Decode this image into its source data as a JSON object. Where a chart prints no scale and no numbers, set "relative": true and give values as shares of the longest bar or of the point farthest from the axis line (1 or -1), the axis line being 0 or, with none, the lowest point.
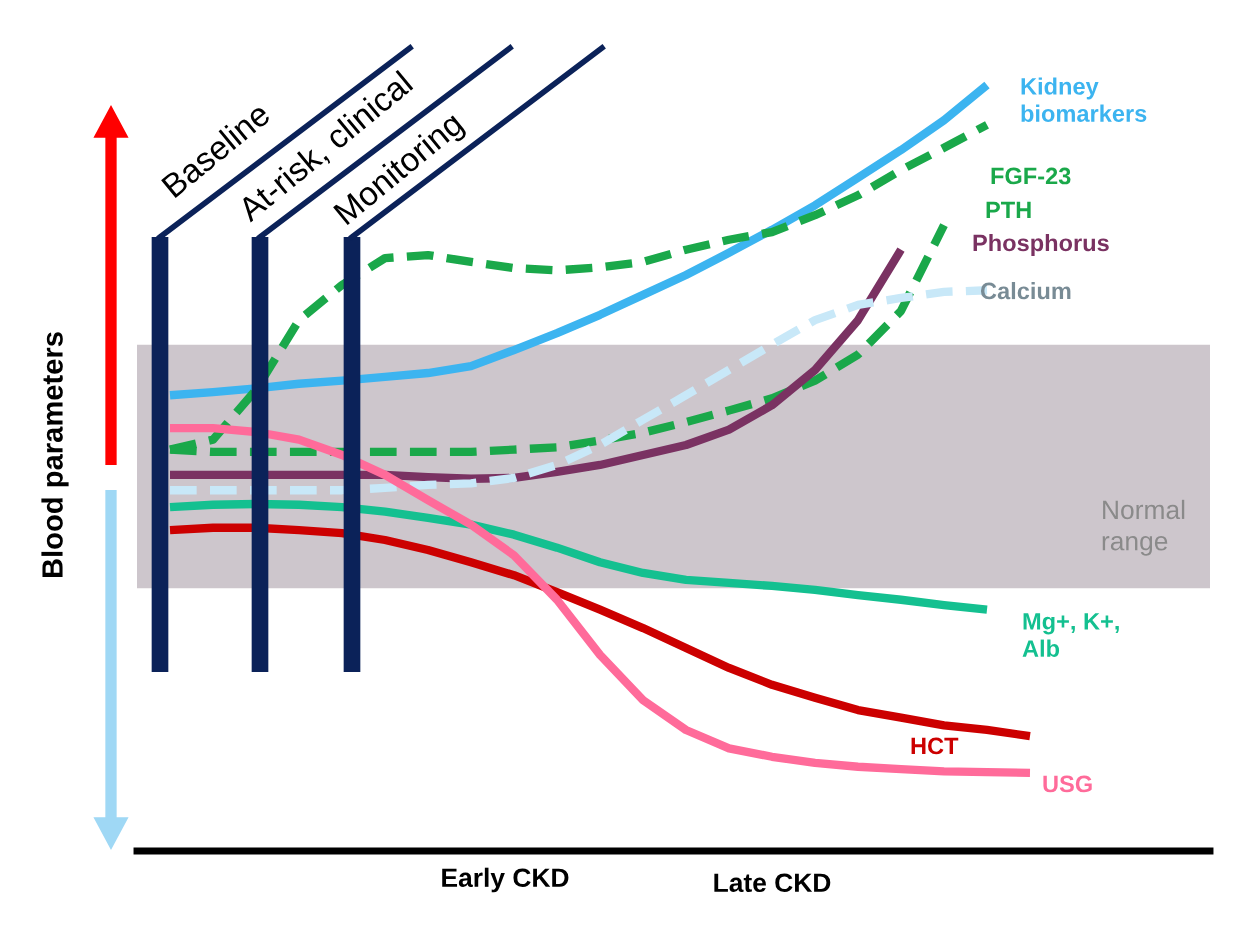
{
  "chart_data": {
    "type": "line",
    "relative": true,
    "ylabel": "Blood parameters",
    "categories": [
      null,
      null,
      null,
      null,
      null,
      null,
      null,
      null,
      null,
      null,
      null,
      null,
      null,
      null,
      null,
      null,
      null,
      null,
      null,
      null,
      null
    ],
    "series": [
      {
        "name": "Kidney biomarkers",
        "color": "#3cb4f0",
        "line_style": "solid",
        "values": [
          0.595,
          0.599,
          0.604,
          0.61,
          0.614,
          0.619,
          0.624,
          0.633,
          0.654,
          0.676,
          0.7,
          0.726,
          0.752,
          0.781,
          0.811,
          0.843,
          0.879,
          0.915,
          0.954,
          1.0,
          null
        ]
      },
      {
        "name": "FGF-23",
        "color": "#1aa84a",
        "line_style": "dashed",
        "values": [
          0.524,
          0.537,
          0.602,
          0.693,
          0.739,
          0.774,
          0.778,
          0.769,
          0.761,
          0.758,
          0.762,
          0.769,
          0.785,
          0.798,
          0.808,
          0.83,
          0.856,
          0.889,
          0.918,
          0.948,
          null
        ]
      },
      {
        "name": "PTH",
        "color": "#1aa84a",
        "line_style": "dashed",
        "values": [
          0.524,
          0.521,
          0.521,
          0.521,
          0.521,
          0.521,
          0.521,
          0.521,
          0.524,
          0.527,
          0.536,
          0.546,
          0.56,
          0.575,
          0.591,
          0.614,
          0.648,
          0.705,
          0.817,
          null,
          null
        ]
      },
      {
        "name": "Phosphorus",
        "color": "#7a3262",
        "line_style": "solid",
        "values": [
          0.491,
          0.491,
          0.491,
          0.491,
          0.491,
          0.491,
          0.488,
          0.486,
          0.487,
          0.495,
          0.504,
          0.517,
          0.53,
          0.55,
          0.582,
          0.628,
          0.693,
          0.785,
          null,
          null,
          null
        ]
      },
      {
        "name": "Calcium",
        "color": "#c8e8f8",
        "line_style": "dashed",
        "values": [
          0.471,
          0.471,
          0.471,
          0.471,
          0.471,
          0.474,
          0.478,
          0.48,
          0.487,
          0.504,
          0.53,
          0.563,
          0.595,
          0.628,
          0.661,
          0.693,
          0.713,
          0.722,
          0.73,
          0.732,
          null
        ]
      },
      {
        "name": "Mg+, K+, Alb",
        "color": "#14c090",
        "line_style": "solid",
        "values": [
          0.449,
          0.452,
          0.453,
          0.452,
          0.449,
          0.443,
          0.435,
          0.426,
          0.413,
          0.396,
          0.377,
          0.363,
          0.354,
          0.35,
          0.346,
          0.341,
          0.334,
          0.328,
          0.321,
          0.315,
          null
        ]
      },
      {
        "name": "HCT",
        "color": "#cc0000",
        "line_style": "solid",
        "values": [
          0.419,
          0.422,
          0.422,
          0.419,
          0.415,
          0.406,
          0.393,
          0.377,
          0.36,
          0.338,
          0.315,
          0.291,
          0.265,
          0.239,
          0.217,
          0.2,
          0.184,
          0.174,
          0.164,
          0.158,
          0.15
        ]
      },
      {
        "name": "USG",
        "color": "#ff6b9a",
        "line_style": "solid",
        "values": [
          0.552,
          0.552,
          0.547,
          0.537,
          0.517,
          0.491,
          0.458,
          0.426,
          0.386,
          0.328,
          0.256,
          0.197,
          0.158,
          0.134,
          0.123,
          0.115,
          0.11,
          0.107,
          0.104,
          0.103,
          0.102
        ]
      }
    ],
    "bands": [
      {
        "axis": "y",
        "from": 0.343,
        "to": 0.661,
        "label": "Normal range",
        "color": "#cdc6cc"
      }
    ],
    "annotations": [
      "Baseline",
      "At-risk, clinical",
      "Monitoring",
      "Early CKD",
      "Late CKD"
    ],
    "grid": false
  }
}
